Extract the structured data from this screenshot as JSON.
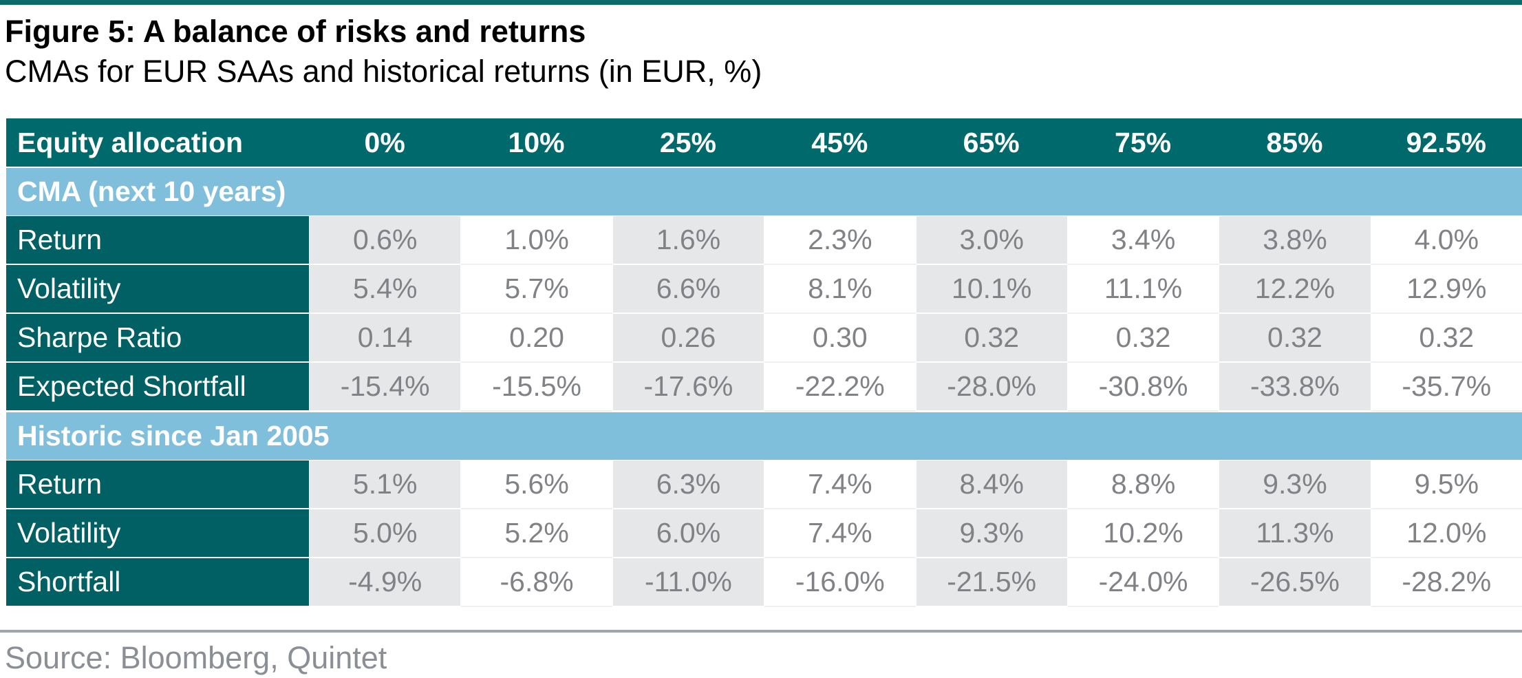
{
  "figure": {
    "title": "Figure 5: A balance of risks and returns",
    "subtitle": "CMAs for EUR SAAs and historical returns (in EUR, %)",
    "source": "Source: Bloomberg, Quintet"
  },
  "colors": {
    "top_rule": "#0b6b6b",
    "header_bg": "#00696b",
    "section_bg": "#7fbfdc",
    "row_label_bg": "#006064",
    "shaded_cell": "#e6e7e9",
    "value_text": "#808285"
  },
  "table": {
    "columns": [
      "Equity allocation",
      "0%",
      "10%",
      "25%",
      "45%",
      "65%",
      "75%",
      "85%",
      "92.5%"
    ],
    "sections": [
      {
        "title": "CMA (next 10 years)",
        "rows": [
          {
            "label": "Return",
            "values": [
              "0.6%",
              "1.0%",
              "1.6%",
              "2.3%",
              "3.0%",
              "3.4%",
              "3.8%",
              "4.0%"
            ]
          },
          {
            "label": "Volatility",
            "values": [
              "5.4%",
              "5.7%",
              "6.6%",
              "8.1%",
              "10.1%",
              "11.1%",
              "12.2%",
              "12.9%"
            ]
          },
          {
            "label": "Sharpe Ratio",
            "values": [
              "0.14",
              "0.20",
              "0.26",
              "0.30",
              "0.32",
              "0.32",
              "0.32",
              "0.32"
            ]
          },
          {
            "label": "Expected Shortfall",
            "values": [
              "-15.4%",
              "-15.5%",
              "-17.6%",
              "-22.2%",
              "-28.0%",
              "-30.8%",
              "-33.8%",
              "-35.7%"
            ]
          }
        ]
      },
      {
        "title": "Historic since Jan 2005",
        "rows": [
          {
            "label": "Return",
            "values": [
              "5.1%",
              "5.6%",
              "6.3%",
              "7.4%",
              "8.4%",
              "8.8%",
              "9.3%",
              "9.5%"
            ]
          },
          {
            "label": "Volatility",
            "values": [
              "5.0%",
              "5.2%",
              "6.0%",
              "7.4%",
              "9.3%",
              "10.2%",
              "11.3%",
              "12.0%"
            ]
          },
          {
            "label": "Shortfall",
            "values": [
              "-4.9%",
              "-6.8%",
              "-11.0%",
              "-16.0%",
              "-21.5%",
              "-24.0%",
              "-26.5%",
              "-28.2%"
            ]
          }
        ]
      }
    ]
  }
}
